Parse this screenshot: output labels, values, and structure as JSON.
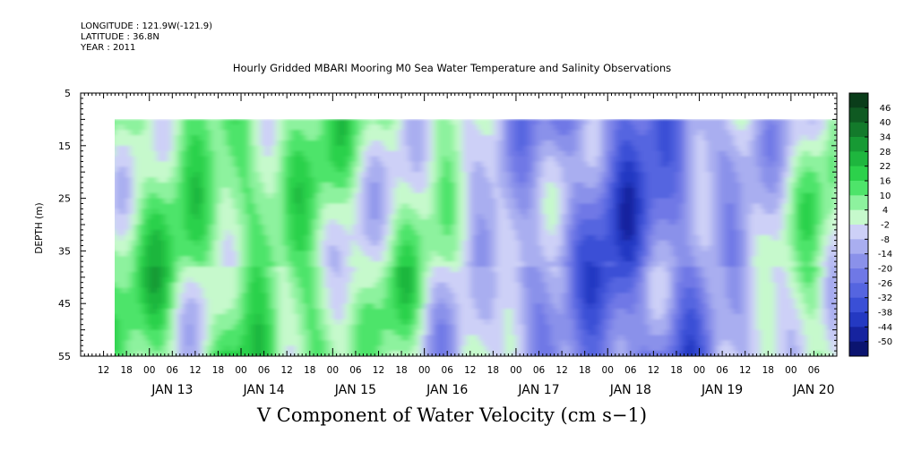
{
  "meta": {
    "longitude": "LONGITUDE : 121.9W(-121.9)",
    "latitude": "LATITUDE : 36.8N",
    "year": "YEAR : 2011"
  },
  "chart_data": {
    "type": "heatmap",
    "title": "Hourly Gridded MBARI Mooring M0 Sea Water Temperature and Salinity Observations",
    "xlabel": "V Component of Water Velocity (cm s−1)",
    "ylabel": "DEPTH (m)",
    "y_axis": {
      "range": [
        5,
        55
      ],
      "inverted": true,
      "ticks": [
        5,
        15,
        25,
        35,
        45,
        55
      ],
      "data_range": [
        10,
        55
      ]
    },
    "x_axis": {
      "start": "2011-01-12T06:00",
      "end": "2011-01-20T12:00",
      "data_start": "2011-01-12T12:00",
      "hour_tick_labels": [
        "12",
        "18",
        "00",
        "06",
        "12",
        "18",
        "00",
        "06",
        "12",
        "18",
        "00",
        "06",
        "12",
        "18",
        "00",
        "06",
        "12",
        "18",
        "00",
        "06",
        "12",
        "18",
        "00",
        "06",
        "12",
        "18",
        "00",
        "06",
        "12",
        "18",
        "00",
        "06"
      ],
      "day_labels": [
        "JAN 13",
        "JAN 14",
        "JAN 15",
        "JAN 16",
        "JAN 17",
        "JAN 18",
        "JAN 19",
        "JAN 20"
      ]
    },
    "colorbar": {
      "labels": [
        "46",
        "40",
        "34",
        "28",
        "22",
        "16",
        "10",
        "4",
        "-2",
        "-8",
        "-14",
        "-20",
        "-26",
        "-32",
        "-38",
        "-44",
        "-50"
      ],
      "colors": [
        "#0a3d1a",
        "#0f5a22",
        "#137a2b",
        "#179a34",
        "#1eb63e",
        "#2cd14b",
        "#4ee46a",
        "#8df29e",
        "#c6f9cc",
        "#cdd0f7",
        "#a9aef0",
        "#8a91ea",
        "#6f78e6",
        "#5565e0",
        "#3a4fd6",
        "#2439c2",
        "#16239f",
        "#0b1470"
      ]
    },
    "heatmap_profile": {
      "day_marks": [
        "JAN 13",
        "JAN 14",
        "JAN 15",
        "JAN 16",
        "JAN 17",
        "JAN 18",
        "JAN 19",
        "JAN 20"
      ],
      "approx_values_by_day": [
        8,
        10,
        4,
        0,
        -14,
        -30,
        -12,
        2
      ]
    }
  }
}
